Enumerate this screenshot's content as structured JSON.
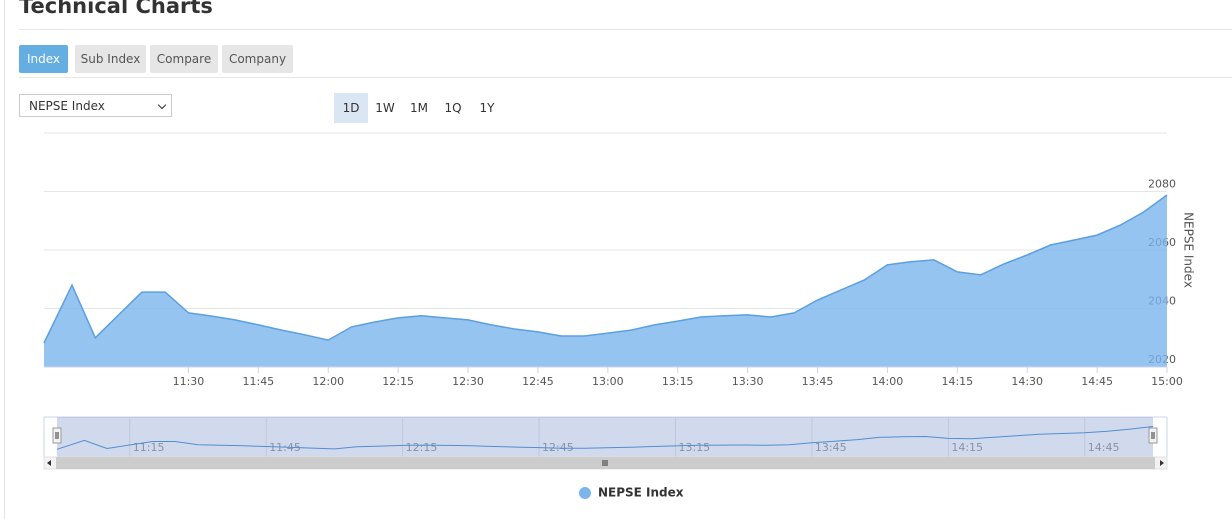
{
  "header": {
    "title": "Technical Charts"
  },
  "tabs": [
    "Index",
    "Sub Index",
    "Compare",
    "Company"
  ],
  "select": "NEPSE Index",
  "ranges": [
    "1D",
    "1W",
    "1M",
    "1Q",
    "1Y"
  ],
  "chart_data": {
    "type": "area",
    "x": [
      "10:59",
      "11:05",
      "11:10",
      "11:15",
      "11:20",
      "11:25",
      "11:30",
      "11:35",
      "11:40",
      "11:45",
      "11:50",
      "11:55",
      "12:00",
      "12:05",
      "12:10",
      "12:15",
      "12:20",
      "12:25",
      "12:30",
      "12:35",
      "12:40",
      "12:45",
      "12:50",
      "12:55",
      "13:00",
      "13:05",
      "13:10",
      "13:15",
      "13:20",
      "13:25",
      "13:30",
      "13:35",
      "13:40",
      "13:45",
      "13:50",
      "13:55",
      "14:00",
      "14:05",
      "14:10",
      "14:15",
      "14:20",
      "14:25",
      "14:30",
      "14:35",
      "14:40",
      "14:45",
      "14:50",
      "14:55",
      "15:00"
    ],
    "series": [
      {
        "name": "NEPSE Index",
        "color": "#7cb5ec",
        "values": [
          2028.2,
          2048.0,
          2030.0,
          2037.8,
          2045.6,
          2045.6,
          2038.5,
          2037.4,
          2036.1,
          2034.4,
          2032.6,
          2031.0,
          2029.2,
          2033.7,
          2035.4,
          2036.8,
          2037.5,
          2036.8,
          2036.1,
          2034.4,
          2033.0,
          2032.0,
          2030.6,
          2030.6,
          2031.6,
          2032.6,
          2034.4,
          2035.7,
          2037.1,
          2037.5,
          2037.8,
          2037.1,
          2038.5,
          2042.9,
          2046.3,
          2049.7,
          2054.9,
          2056.0,
          2056.6,
          2052.5,
          2051.5,
          2055.2,
          2058.3,
          2061.7,
          2063.4,
          2065.1,
          2068.5,
          2073.0,
          2078.8
        ]
      }
    ],
    "xlim": [
      "10:59",
      "15:00"
    ],
    "xticks": [
      "11:30",
      "11:45",
      "12:00",
      "12:15",
      "12:30",
      "12:45",
      "13:00",
      "13:15",
      "13:30",
      "13:45",
      "14:00",
      "14:15",
      "14:30",
      "14:45",
      "15:00"
    ],
    "ylim": [
      2020,
      2100
    ],
    "yticks": [
      2020,
      2040,
      2060,
      2080
    ],
    "ylabel": "NEPSE Index",
    "grid": true,
    "navigator_xticks": [
      "11:15",
      "11:45",
      "12:15",
      "12:45",
      "13:15",
      "13:45",
      "14:15",
      "14:45"
    ]
  }
}
